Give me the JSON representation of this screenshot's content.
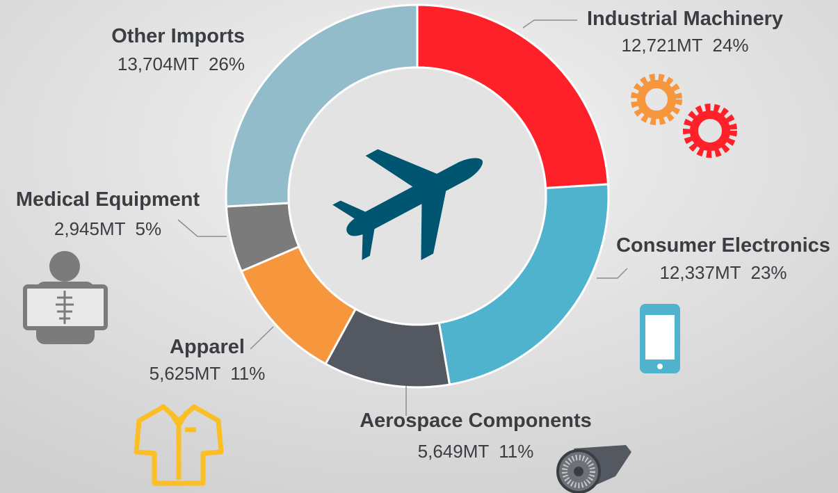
{
  "chart_data": {
    "type": "donut",
    "categories": [
      "Industrial Machinery",
      "Consumer Electronics",
      "Aerospace Components",
      "Apparel",
      "Medical Equipment",
      "Other Imports"
    ],
    "values": [
      12721,
      12337,
      5649,
      5625,
      2945,
      13704
    ],
    "value_labels": [
      "12,721MT",
      "12,337MT",
      "5,649MT",
      "5,625MT",
      "2,945MT",
      "13,704MT"
    ],
    "percent_labels": [
      "24%",
      "23%",
      "11%",
      "11%",
      "5%",
      "26%"
    ],
    "colors": [
      "#ff2129",
      "#4fb3ce",
      "#545961",
      "#f7973d",
      "#7b7b7b",
      "#93bccb"
    ]
  }
}
